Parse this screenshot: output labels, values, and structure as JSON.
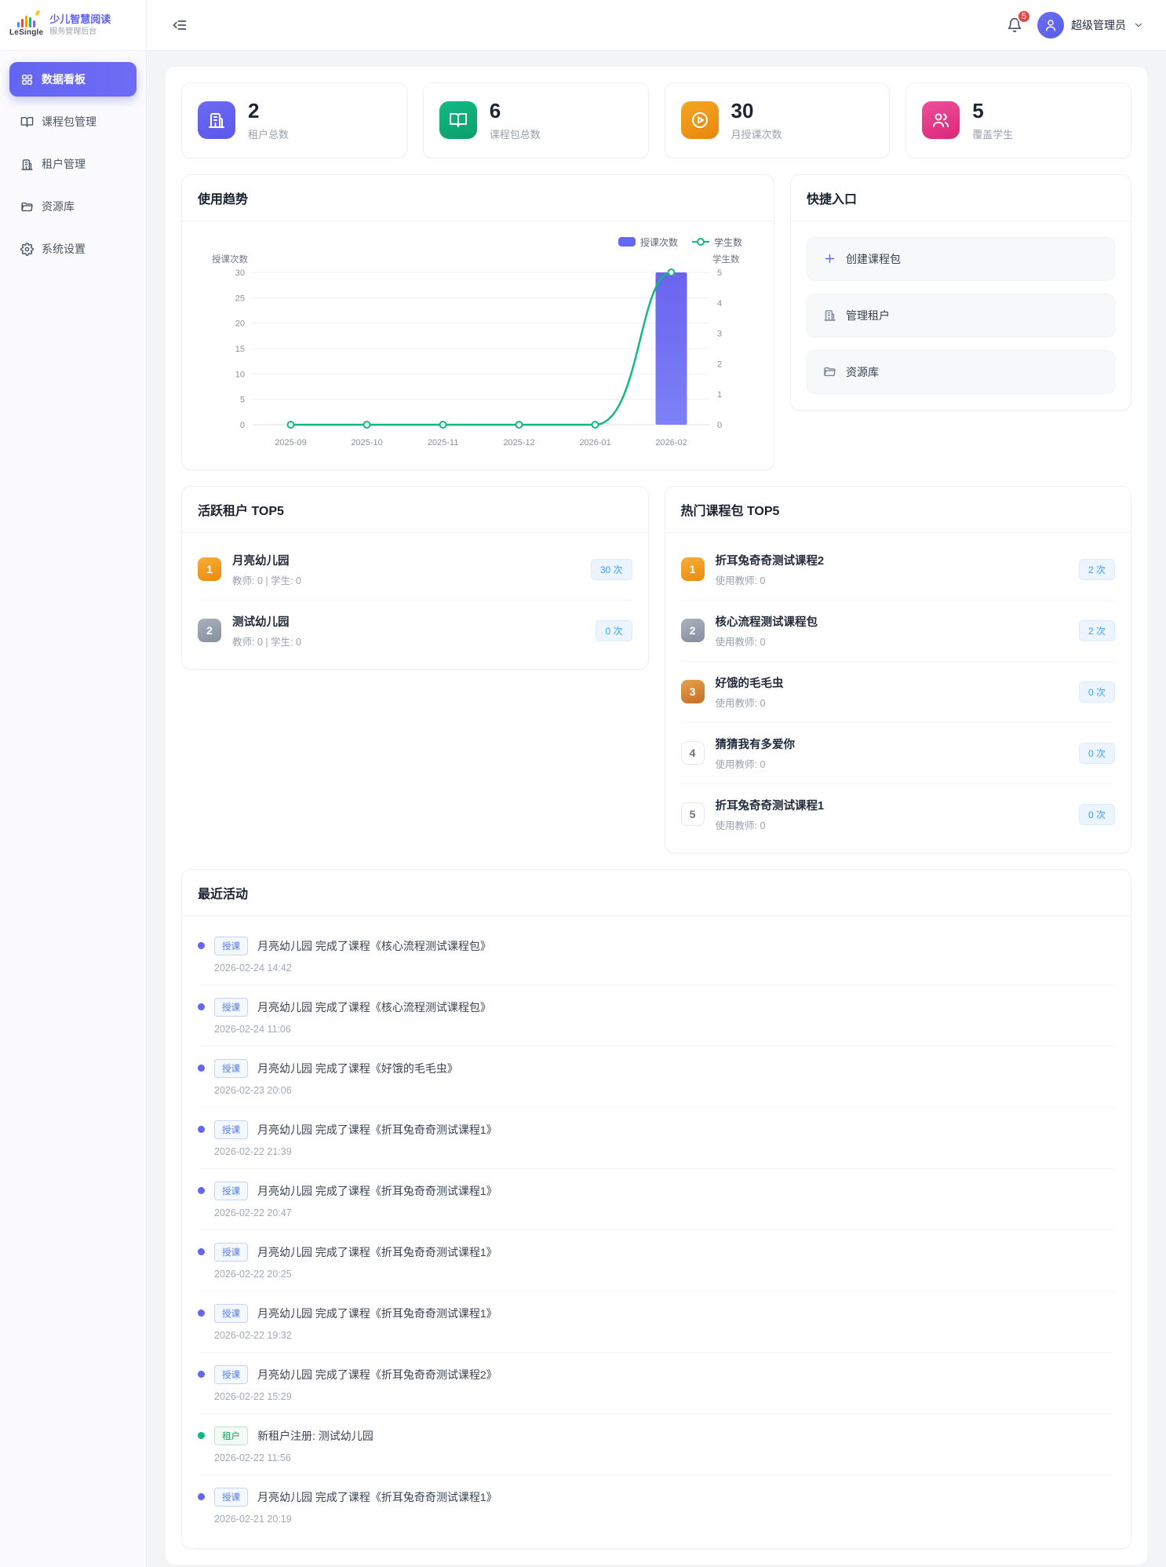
{
  "app": {
    "logo_text": "LeSingle",
    "title": "少儿智慧阅读",
    "subtitle": "服务管理后台"
  },
  "header": {
    "user_name": "超级管理员",
    "notification_count": "5"
  },
  "sidebar": {
    "items": [
      {
        "label": "数据看板",
        "icon": "dashboard-icon",
        "active": true
      },
      {
        "label": "课程包管理",
        "icon": "book-icon",
        "active": false
      },
      {
        "label": "租户管理",
        "icon": "building-icon",
        "active": false
      },
      {
        "label": "资源库",
        "icon": "folder-icon",
        "active": false
      },
      {
        "label": "系统设置",
        "icon": "gear-icon",
        "active": false
      }
    ]
  },
  "stats": [
    {
      "value": "2",
      "label": "租户总数",
      "icon": "building-icon",
      "color": "#6366f1"
    },
    {
      "value": "6",
      "label": "课程包总数",
      "icon": "book-icon",
      "color": "#10b981"
    },
    {
      "value": "30",
      "label": "月授课次数",
      "icon": "play-circle-icon",
      "color": "#f59e0b"
    },
    {
      "value": "5",
      "label": "覆盖学生",
      "icon": "users-icon",
      "color": "#ec4899"
    }
  ],
  "trend_panel": {
    "title": "使用趋势"
  },
  "chart_data": {
    "type": "bar",
    "categories": [
      "2025-09",
      "2025-10",
      "2025-11",
      "2025-12",
      "2026-01",
      "2026-02"
    ],
    "series": [
      {
        "name": "授课次数",
        "type": "bar",
        "axis": "left",
        "color": "#6467f2",
        "values": [
          0,
          0,
          0,
          0,
          0,
          30
        ]
      },
      {
        "name": "学生数",
        "type": "line",
        "axis": "right",
        "color": "#10b981",
        "values": [
          0,
          0,
          0,
          0,
          0,
          5
        ]
      }
    ],
    "left_axis": {
      "name": "授课次数",
      "min": 0,
      "max": 30,
      "ticks": [
        0,
        5,
        10,
        15,
        20,
        25,
        30
      ]
    },
    "right_axis": {
      "name": "学生数",
      "min": 0,
      "max": 5,
      "ticks": [
        0,
        1,
        2,
        3,
        4,
        5
      ]
    },
    "legend_position": "top-right",
    "grid": true,
    "title": "使用趋势"
  },
  "quick_links": {
    "title": "快捷入口",
    "items": [
      {
        "label": "创建课程包",
        "icon": "plus-icon"
      },
      {
        "label": "管理租户",
        "icon": "building-icon"
      },
      {
        "label": "资源库",
        "icon": "folder-icon"
      }
    ]
  },
  "active_tenants": {
    "title": "活跃租户 TOP5",
    "rows": [
      {
        "rank": "1",
        "name": "月亮幼儿园",
        "meta": "教师: 0 | 学生: 0",
        "count": "30 次"
      },
      {
        "rank": "2",
        "name": "测试幼儿园",
        "meta": "教师: 0 | 学生: 0",
        "count": "0 次"
      }
    ]
  },
  "hot_packages": {
    "title": "热门课程包 TOP5",
    "rows": [
      {
        "rank": "1",
        "name": "折耳兔奇奇测试课程2",
        "meta": "使用教师: 0",
        "count": "2 次"
      },
      {
        "rank": "2",
        "name": "核心流程测试课程包",
        "meta": "使用教师: 0",
        "count": "2 次"
      },
      {
        "rank": "3",
        "name": "好饿的毛毛虫",
        "meta": "使用教师: 0",
        "count": "0 次"
      },
      {
        "rank": "4",
        "name": "猜猜我有多爱你",
        "meta": "使用教师: 0",
        "count": "0 次"
      },
      {
        "rank": "5",
        "name": "折耳兔奇奇测试课程1",
        "meta": "使用教师: 0",
        "count": "0 次"
      }
    ]
  },
  "activities": {
    "title": "最近活动",
    "rows": [
      {
        "tag": "授课",
        "tag_type": "blue",
        "text": "月亮幼儿园 完成了课程《核心流程测试课程包》",
        "time": "2026-02-24 14:42"
      },
      {
        "tag": "授课",
        "tag_type": "blue",
        "text": "月亮幼儿园 完成了课程《核心流程测试课程包》",
        "time": "2026-02-24 11:06"
      },
      {
        "tag": "授课",
        "tag_type": "blue",
        "text": "月亮幼儿园 完成了课程《好饿的毛毛虫》",
        "time": "2026-02-23 20:06"
      },
      {
        "tag": "授课",
        "tag_type": "blue",
        "text": "月亮幼儿园 完成了课程《折耳兔奇奇测试课程1》",
        "time": "2026-02-22 21:39"
      },
      {
        "tag": "授课",
        "tag_type": "blue",
        "text": "月亮幼儿园 完成了课程《折耳兔奇奇测试课程1》",
        "time": "2026-02-22 20:47"
      },
      {
        "tag": "授课",
        "tag_type": "blue",
        "text": "月亮幼儿园 完成了课程《折耳兔奇奇测试课程1》",
        "time": "2026-02-22 20:25"
      },
      {
        "tag": "授课",
        "tag_type": "blue",
        "text": "月亮幼儿园 完成了课程《折耳兔奇奇测试课程1》",
        "time": "2026-02-22 19:32"
      },
      {
        "tag": "授课",
        "tag_type": "blue",
        "text": "月亮幼儿园 完成了课程《折耳兔奇奇测试课程2》",
        "time": "2026-02-22 15:29"
      },
      {
        "tag": "租户",
        "tag_type": "green",
        "text": "新租户注册: 测试幼儿园",
        "time": "2026-02-22 11:56"
      },
      {
        "tag": "授课",
        "tag_type": "blue",
        "text": "月亮幼儿园 完成了课程《折耳兔奇奇测试课程1》",
        "time": "2026-02-21 20:19"
      }
    ]
  }
}
